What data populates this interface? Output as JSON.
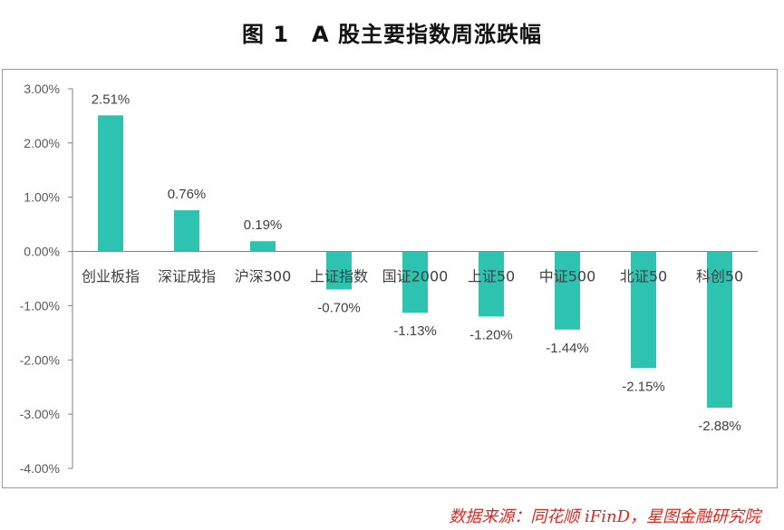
{
  "chart_data": {
    "type": "bar",
    "title": "图 1　A 股主要指数周涨跌幅",
    "categories": [
      "创业板指",
      "深证成指",
      "沪深300",
      "上证指数",
      "国证2000",
      "上证50",
      "中证500",
      "北证50",
      "科创50"
    ],
    "values": [
      2.51,
      0.76,
      0.19,
      -0.7,
      -1.13,
      -1.2,
      -1.44,
      -2.15,
      -2.88
    ],
    "value_labels": [
      "2.51%",
      "0.76%",
      "0.19%",
      "-0.70%",
      "-1.13%",
      "-1.20%",
      "-1.44%",
      "-2.15%",
      "-2.88%"
    ],
    "yticks": [
      3,
      2,
      1,
      0,
      -1,
      -2,
      -3,
      -4
    ],
    "ytick_labels": [
      "3.00%",
      "2.00%",
      "1.00%",
      "0.00%",
      "-1.00%",
      "-2.00%",
      "-3.00%",
      "-4.00%"
    ],
    "ylim": [
      -4,
      3
    ],
    "xlabel": "",
    "ylabel": "",
    "grid": false,
    "bar_color": "#2ec2b0",
    "source": "数据来源：同花顺 iFinD，星图金融研究院"
  }
}
